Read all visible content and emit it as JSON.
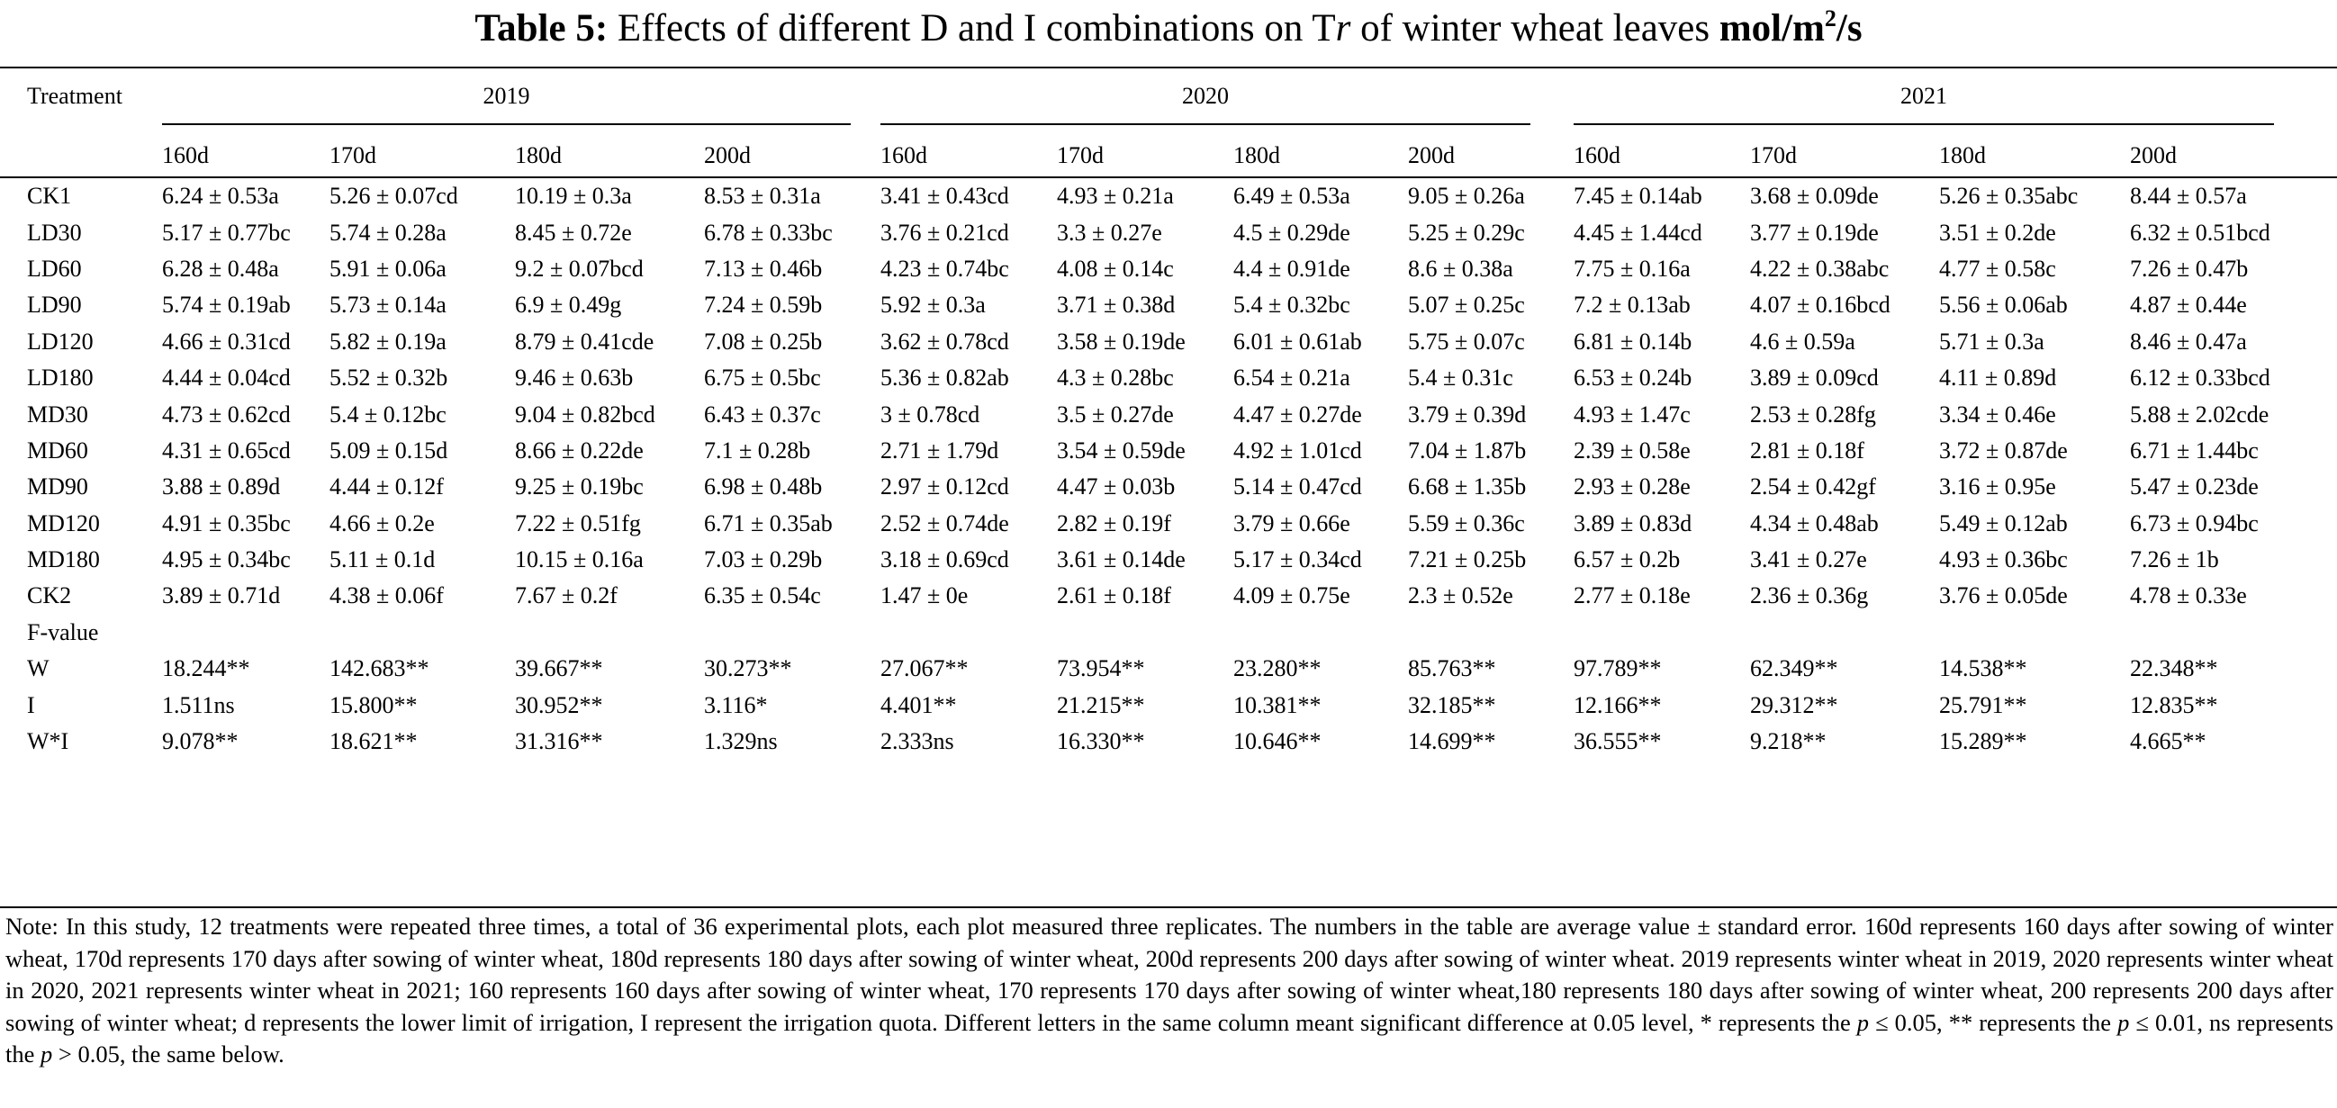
{
  "caption": {
    "label": "Table 5:",
    "text_before": "Effects of different D and I combinations on T",
    "tr_italic": "r",
    "text_after": "of winter wheat leaves",
    "unit": "mol/m",
    "unit_sup": "2",
    "unit_tail": "/s"
  },
  "header": {
    "treatment": "Treatment",
    "years": [
      "2019",
      "2020",
      "2021"
    ],
    "days": [
      "160d",
      "170d",
      "180d",
      "200d"
    ]
  },
  "rows": [
    {
      "t": "CK1",
      "v": [
        "6.24 ± 0.53a",
        "5.26 ± 0.07cd",
        "10.19 ± 0.3a",
        "8.53 ± 0.31a",
        "3.41 ± 0.43cd",
        "4.93 ± 0.21a",
        "6.49 ± 0.53a",
        "9.05 ± 0.26a",
        "7.45 ± 0.14ab",
        "3.68 ± 0.09de",
        "5.26 ± 0.35abc",
        "8.44 ± 0.57a"
      ]
    },
    {
      "t": "LD30",
      "v": [
        "5.17 ± 0.77bc",
        "5.74 ± 0.28a",
        "8.45 ± 0.72e",
        "6.78 ± 0.33bc",
        "3.76 ± 0.21cd",
        "3.3 ± 0.27e",
        "4.5 ± 0.29de",
        "5.25 ± 0.29c",
        "4.45 ± 1.44cd",
        "3.77 ± 0.19de",
        "3.51 ± 0.2de",
        "6.32 ± 0.51bcd"
      ]
    },
    {
      "t": "LD60",
      "v": [
        "6.28 ± 0.48a",
        "5.91 ± 0.06a",
        "9.2 ± 0.07bcd",
        "7.13 ± 0.46b",
        "4.23 ± 0.74bc",
        "4.08 ± 0.14c",
        "4.4 ± 0.91de",
        "8.6 ± 0.38a",
        "7.75 ± 0.16a",
        "4.22 ± 0.38abc",
        "4.77 ± 0.58c",
        "7.26 ± 0.47b"
      ]
    },
    {
      "t": "LD90",
      "v": [
        "5.74 ± 0.19ab",
        "5.73 ± 0.14a",
        "6.9 ± 0.49g",
        "7.24 ± 0.59b",
        "5.92 ± 0.3a",
        "3.71 ± 0.38d",
        "5.4 ± 0.32bc",
        "5.07 ± 0.25c",
        "7.2 ± 0.13ab",
        "4.07 ± 0.16bcd",
        "5.56 ± 0.06ab",
        "4.87 ± 0.44e"
      ]
    },
    {
      "t": "LD120",
      "v": [
        "4.66 ± 0.31cd",
        "5.82 ± 0.19a",
        "8.79 ± 0.41cde",
        "7.08 ± 0.25b",
        "3.62 ± 0.78cd",
        "3.58 ± 0.19de",
        "6.01 ± 0.61ab",
        "5.75 ± 0.07c",
        "6.81 ± 0.14b",
        "4.6 ± 0.59a",
        "5.71 ± 0.3a",
        "8.46 ± 0.47a"
      ]
    },
    {
      "t": "LD180",
      "v": [
        "4.44 ± 0.04cd",
        "5.52 ± 0.32b",
        "9.46 ± 0.63b",
        "6.75 ± 0.5bc",
        "5.36 ± 0.82ab",
        "4.3 ± 0.28bc",
        "6.54 ± 0.21a",
        "5.4 ± 0.31c",
        "6.53 ± 0.24b",
        "3.89 ± 0.09cd",
        "4.11 ± 0.89d",
        "6.12 ± 0.33bcd"
      ]
    },
    {
      "t": "MD30",
      "v": [
        "4.73 ± 0.62cd",
        "5.4 ± 0.12bc",
        "9.04 ± 0.82bcd",
        "6.43 ± 0.37c",
        "3 ± 0.78cd",
        "3.5 ± 0.27de",
        "4.47 ± 0.27de",
        "3.79 ± 0.39d",
        "4.93 ± 1.47c",
        "2.53 ± 0.28fg",
        "3.34 ± 0.46e",
        "5.88 ± 2.02cde"
      ]
    },
    {
      "t": "MD60",
      "v": [
        "4.31 ± 0.65cd",
        "5.09 ± 0.15d",
        "8.66 ± 0.22de",
        "7.1 ± 0.28b",
        "2.71 ± 1.79d",
        "3.54 ± 0.59de",
        "4.92 ± 1.01cd",
        "7.04 ± 1.87b",
        "2.39 ± 0.58e",
        "2.81 ± 0.18f",
        "3.72 ± 0.87de",
        "6.71 ± 1.44bc"
      ]
    },
    {
      "t": "MD90",
      "v": [
        "3.88 ± 0.89d",
        "4.44 ± 0.12f",
        "9.25 ± 0.19bc",
        "6.98 ± 0.48b",
        "2.97 ± 0.12cd",
        "4.47 ± 0.03b",
        "5.14 ± 0.47cd",
        "6.68 ± 1.35b",
        "2.93 ± 0.28e",
        "2.54 ± 0.42gf",
        "3.16 ± 0.95e",
        "5.47 ± 0.23de"
      ]
    },
    {
      "t": "MD120",
      "v": [
        "4.91 ± 0.35bc",
        "4.66 ± 0.2e",
        "7.22 ± 0.51fg",
        "6.71 ± 0.35ab",
        "2.52 ± 0.74de",
        "2.82 ± 0.19f",
        "3.79 ± 0.66e",
        "5.59 ± 0.36c",
        "3.89 ± 0.83d",
        "4.34 ± 0.48ab",
        "5.49 ± 0.12ab",
        "6.73 ± 0.94bc"
      ]
    },
    {
      "t": "MD180",
      "v": [
        "4.95 ± 0.34bc",
        "5.11 ± 0.1d",
        "10.15 ± 0.16a",
        "7.03 ± 0.29b",
        "3.18 ± 0.69cd",
        "3.61 ± 0.14de",
        "5.17 ± 0.34cd",
        "7.21 ± 0.25b",
        "6.57 ± 0.2b",
        "3.41 ± 0.27e",
        "4.93 ± 0.36bc",
        "7.26 ± 1b"
      ]
    },
    {
      "t": "CK2",
      "v": [
        "3.89 ± 0.71d",
        "4.38 ± 0.06f",
        "7.67 ± 0.2f",
        "6.35 ± 0.54c",
        "1.47 ± 0e",
        "2.61 ± 0.18f",
        "4.09 ± 0.75e",
        "2.3 ± 0.52e",
        "2.77 ± 0.18e",
        "2.36 ± 0.36g",
        "3.76 ± 0.05de",
        "4.78 ± 0.33e"
      ]
    },
    {
      "t": "F-value",
      "v": [
        "",
        "",
        "",
        "",
        "",
        "",
        "",
        "",
        "",
        "",
        "",
        ""
      ]
    },
    {
      "t": "W",
      "v": [
        "18.244**",
        "142.683**",
        "39.667**",
        "30.273**",
        "27.067**",
        "73.954**",
        "23.280**",
        "85.763**",
        "97.789**",
        "62.349**",
        "14.538**",
        "22.348**"
      ]
    },
    {
      "t": "I",
      "v": [
        "1.511ns",
        "15.800**",
        "30.952**",
        "3.116*",
        "4.401**",
        "21.215**",
        "10.381**",
        "32.185**",
        "12.166**",
        "29.312**",
        "25.791**",
        "12.835**"
      ]
    },
    {
      "t": "W*I",
      "v": [
        "9.078**",
        "18.621**",
        "31.316**",
        "1.329ns",
        "2.333ns",
        "16.330**",
        "10.646**",
        "14.699**",
        "36.555**",
        "9.218**",
        "15.289**",
        "4.665**"
      ]
    }
  ],
  "note": {
    "p1": "Note: In this study, 12 treatments were repeated three times, a total of 36 experimental plots, each plot measured three replicates. The numbers in the table are average value ± standard error. 160d represents 160 days after sowing of winter wheat, 170d represents 170 days after sowing of winter wheat, 180d represents 180 days after sowing of winter wheat, 200d represents 200 days after sowing of winter wheat. 2019 represents winter wheat in 2019, 2020 represents winter wheat in 2020, 2021 represents winter wheat in 2021; 160 represents 160 days after sowing of winter wheat, 170 represents 170 days after sowing of winter wheat,180 represents 180 days after sowing of winter wheat, 200 represents 200 days after sowing of winter wheat; d represents the lower limit of irrigation, I represent the irrigation quota. Different letters in the same column meant significant difference at 0.05 level, * represents the",
    "p_var": "p",
    "cmp1": "≤ 0.05, ** represents the",
    "cmp2": "≤ 0.01, ns represents the",
    "cmp3": "> 0.05, the same below."
  }
}
